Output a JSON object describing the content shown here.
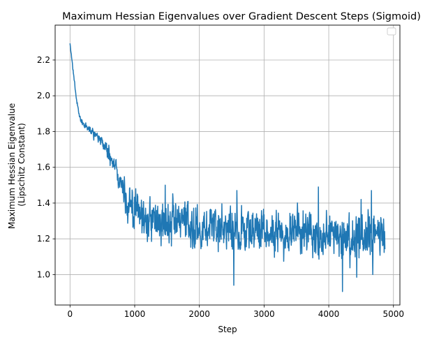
{
  "chart_data": {
    "type": "line",
    "title": "Maximum Hessian Eigenvalues over Gradient Descent Steps (Sigmoid)",
    "xlabel": "Step",
    "ylabel_lines": [
      "Maximum Hessian Eigenvalue",
      "(Lipschitz Constant)"
    ],
    "xlim": [
      -230,
      5100
    ],
    "ylim": [
      0.83,
      2.395
    ],
    "x_ticks": [
      0,
      1000,
      2000,
      3000,
      4000,
      5000
    ],
    "x_tick_labels": [
      "0",
      "1000",
      "2000",
      "3000",
      "4000",
      "5000"
    ],
    "y_ticks": [
      1.0,
      1.2,
      1.4,
      1.6,
      1.8,
      2.0,
      2.2
    ],
    "y_tick_labels": [
      "1.0",
      "1.2",
      "1.4",
      "1.6",
      "1.8",
      "2.0",
      "2.2"
    ],
    "grid": true,
    "legend": "upper right (empty)",
    "line_color": "#1f77b4",
    "series": [
      {
        "x_range": [
          0,
          4870
        ],
        "trend": [
          [
            0,
            2.29
          ],
          [
            30,
            2.2
          ],
          [
            60,
            2.1
          ],
          [
            100,
            1.98
          ],
          [
            150,
            1.88
          ],
          [
            200,
            1.84
          ],
          [
            300,
            1.81
          ],
          [
            400,
            1.79
          ],
          [
            500,
            1.74
          ],
          [
            600,
            1.68
          ],
          [
            700,
            1.6
          ],
          [
            800,
            1.5
          ],
          [
            900,
            1.4
          ],
          [
            1000,
            1.35
          ],
          [
            1200,
            1.31
          ],
          [
            1500,
            1.29
          ],
          [
            2000,
            1.27
          ],
          [
            2500,
            1.255
          ],
          [
            3000,
            1.245
          ],
          [
            3500,
            1.24
          ],
          [
            4000,
            1.23
          ],
          [
            4500,
            1.22
          ],
          [
            4870,
            1.21
          ]
        ],
        "noise_amplitude": [
          [
            0,
            0.005
          ],
          [
            150,
            0.01
          ],
          [
            400,
            0.025
          ],
          [
            700,
            0.05
          ],
          [
            900,
            0.1
          ],
          [
            1100,
            0.1
          ],
          [
            2000,
            0.1
          ],
          [
            3000,
            0.1
          ],
          [
            4000,
            0.1
          ],
          [
            4870,
            0.09
          ]
        ],
        "spikes": [
          [
            2530,
            0.94
          ],
          [
            4210,
            0.905
          ],
          [
            4430,
            0.985
          ],
          [
            2580,
            1.47
          ],
          [
            1470,
            1.5
          ],
          [
            3840,
            1.49
          ],
          [
            4660,
            1.47
          ],
          [
            4500,
            1.42
          ],
          [
            4680,
            1.0
          ]
        ]
      }
    ]
  }
}
